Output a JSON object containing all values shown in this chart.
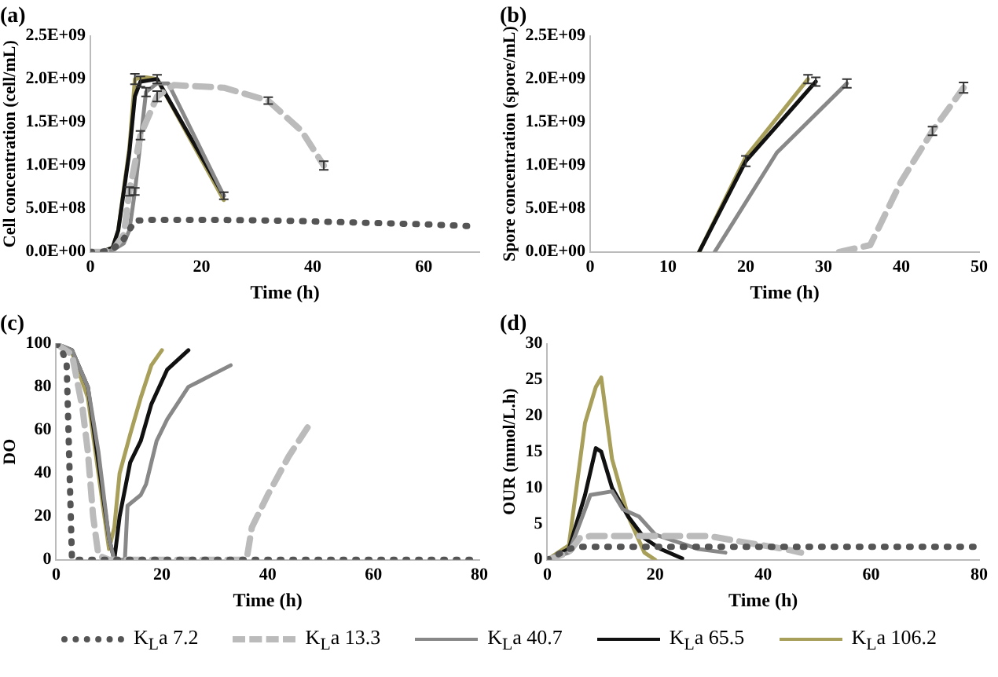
{
  "chart_data": [
    {
      "type": "line",
      "title": "(a)",
      "xlabel": "Time (h)",
      "ylabel": "Cell concentration (cell/mL)",
      "xlim": [
        0,
        70
      ],
      "xticks": [
        0,
        20,
        40,
        60
      ],
      "ylim": [
        0,
        2500000000
      ],
      "yticks": [
        {
          "value": 0,
          "label": "0.0E+00"
        },
        {
          "value": 500000000,
          "label": "5.0E+08"
        },
        {
          "value": 1000000000,
          "label": "1.0E+09"
        },
        {
          "value": 1500000000,
          "label": "1.5E+09"
        },
        {
          "value": 2000000000,
          "label": "2.0E+09"
        },
        {
          "value": 2500000000,
          "label": "2.5E+09"
        }
      ],
      "grid": false,
      "legend": "bottom",
      "series": [
        {
          "name": "K$_{L}$a 7.2",
          "color": "#555555",
          "line_style": "dotted",
          "x": [
            0,
            2,
            4,
            6,
            8,
            10,
            12,
            24,
            36,
            48,
            60,
            68
          ],
          "values": [
            0,
            0,
            30000000,
            150000000,
            360000000,
            370000000,
            370000000,
            370000000,
            360000000,
            340000000,
            320000000,
            300000000
          ]
        },
        {
          "name": "K$_{L}$a 13.3",
          "color": "#bbbbbb",
          "line_style": "dashed",
          "x": [
            0,
            2,
            4,
            6,
            7,
            9,
            12,
            15,
            24,
            32,
            38,
            42
          ],
          "values": [
            0,
            0,
            20000000,
            200000000,
            700000000,
            1350000000,
            1800000000,
            1930000000,
            1900000000,
            1750000000,
            1400000000,
            1000000000
          ],
          "errors": [
            null,
            null,
            null,
            null,
            50000000,
            50000000,
            60000000,
            null,
            null,
            40000000,
            null,
            50000000
          ]
        },
        {
          "name": "K$_{L}$a 40.7",
          "color": "#888888",
          "line_style": "solid",
          "x": [
            0,
            2,
            4,
            6,
            7,
            8,
            10,
            12,
            14,
            24
          ],
          "values": [
            0,
            0,
            20000000,
            100000000,
            250000000,
            700000000,
            1850000000,
            1950000000,
            1950000000,
            650000000
          ],
          "errors": [
            null,
            null,
            null,
            null,
            null,
            40000000,
            50000000,
            null,
            null,
            40000000
          ]
        },
        {
          "name": "K$_{L}$a 65.5",
          "color": "#111111",
          "line_style": "solid",
          "x": [
            0,
            2,
            4,
            5,
            7,
            8,
            9,
            12,
            24
          ],
          "values": [
            0,
            0,
            50000000,
            250000000,
            1150000000,
            1800000000,
            1970000000,
            2000000000,
            650000000
          ],
          "errors": [
            null,
            null,
            null,
            null,
            null,
            null,
            60000000,
            50000000,
            null
          ]
        },
        {
          "name": "K$_{L}$a 106.2",
          "color": "#a89f5a",
          "line_style": "solid",
          "x": [
            0,
            2,
            4,
            5,
            7,
            8,
            10,
            12,
            24
          ],
          "values": [
            0,
            0,
            50000000,
            250000000,
            1200000000,
            2000000000,
            2020000000,
            2000000000,
            600000000
          ],
          "errors": [
            null,
            null,
            null,
            null,
            null,
            60000000,
            null,
            null,
            null
          ]
        }
      ]
    },
    {
      "type": "line",
      "title": "(b)",
      "xlabel": "Time (h)",
      "ylabel": "Spore concentration (spore/mL)",
      "xlim": [
        0,
        50
      ],
      "xticks": [
        0,
        10,
        20,
        30,
        40,
        50
      ],
      "ylim": [
        0,
        2500000000
      ],
      "yticks": [
        {
          "value": 0,
          "label": "0.0E+00"
        },
        {
          "value": 500000000,
          "label": "5.0E+08"
        },
        {
          "value": 1000000000,
          "label": "1.0E+09"
        },
        {
          "value": 1500000000,
          "label": "1.5E+09"
        },
        {
          "value": 2000000000,
          "label": "2.0E+09"
        },
        {
          "value": 2500000000,
          "label": "2.5E+09"
        }
      ],
      "grid": false,
      "series": [
        {
          "color": "#bbbbbb",
          "line_style": "dashed",
          "x": [
            32,
            36,
            40,
            44,
            48
          ],
          "values": [
            0,
            80000000,
            820000000,
            1400000000,
            1900000000
          ],
          "errors": [
            null,
            null,
            null,
            50000000,
            60000000
          ]
        },
        {
          "color": "#888888",
          "line_style": "solid",
          "x": [
            16,
            24,
            33
          ],
          "values": [
            0,
            1150000000,
            1950000000
          ],
          "errors": [
            null,
            null,
            50000000
          ]
        },
        {
          "color": "#111111",
          "line_style": "solid",
          "x": [
            14,
            20,
            29
          ],
          "values": [
            0,
            1050000000,
            1970000000
          ],
          "errors": [
            null,
            60000000,
            50000000
          ]
        },
        {
          "color": "#a89f5a",
          "line_style": "solid",
          "x": [
            14,
            20,
            28
          ],
          "values": [
            0,
            1100000000,
            2000000000
          ],
          "errors": [
            null,
            null,
            50000000
          ]
        }
      ]
    },
    {
      "type": "line",
      "title": "(c)",
      "xlabel": "Time (h)",
      "ylabel": "DO",
      "xlim": [
        0,
        80
      ],
      "xticks": [
        0,
        20,
        40,
        60,
        80
      ],
      "ylim": [
        0,
        100
      ],
      "yticks": [
        0,
        20,
        40,
        60,
        80,
        100
      ],
      "grid": false,
      "series": [
        {
          "color": "#555555",
          "line_style": "dotted",
          "x": [
            0,
            1,
            2,
            3,
            80
          ],
          "values": [
            100,
            98,
            90,
            0,
            0
          ]
        },
        {
          "color": "#bbbbbb",
          "line_style": "dashed",
          "x": [
            0,
            3,
            5,
            6,
            7,
            8,
            10,
            36,
            37,
            40,
            44,
            48
          ],
          "values": [
            100,
            95,
            70,
            50,
            20,
            2,
            0,
            0,
            15,
            30,
            48,
            63
          ]
        },
        {
          "color": "#888888",
          "line_style": "solid",
          "x": [
            0,
            3,
            6,
            8,
            10,
            11,
            13,
            13.5,
            16,
            17,
            19,
            21,
            25,
            29,
            33
          ],
          "values": [
            100,
            97,
            80,
            50,
            10,
            0,
            0,
            25,
            30,
            35,
            55,
            65,
            80,
            85,
            90
          ]
        },
        {
          "color": "#111111",
          "line_style": "solid",
          "x": [
            0,
            3,
            6,
            8,
            10,
            11,
            12,
            14,
            16,
            18,
            21,
            25
          ],
          "values": [
            100,
            97,
            80,
            45,
            10,
            0,
            20,
            45,
            55,
            72,
            88,
            97
          ]
        },
        {
          "color": "#a89f5a",
          "line_style": "solid",
          "x": [
            0,
            3,
            6,
            8,
            10,
            11,
            12,
            14,
            16,
            18,
            20
          ],
          "values": [
            100,
            96,
            75,
            40,
            5,
            15,
            40,
            58,
            75,
            90,
            97
          ]
        }
      ]
    },
    {
      "type": "line",
      "title": "(d)",
      "xlabel": "Time (h)",
      "ylabel": "OUR (mmol/L.h)",
      "xlim": [
        0,
        80
      ],
      "xticks": [
        0,
        20,
        40,
        60,
        80
      ],
      "ylim": [
        0,
        30
      ],
      "yticks": [
        0,
        5,
        10,
        15,
        20,
        25,
        30
      ],
      "grid": false,
      "series": [
        {
          "color": "#555555",
          "line_style": "dotted",
          "x": [
            0,
            4,
            6,
            80
          ],
          "values": [
            0,
            1.5,
            1.8,
            1.8
          ]
        },
        {
          "color": "#bbbbbb",
          "line_style": "dashed",
          "x": [
            0,
            4,
            6,
            8,
            30,
            36,
            44,
            47
          ],
          "values": [
            0,
            1,
            3,
            3.3,
            3.3,
            2.5,
            1.5,
            1
          ]
        },
        {
          "color": "#888888",
          "line_style": "solid",
          "x": [
            0,
            4,
            7,
            8,
            12,
            14,
            17,
            20,
            24,
            28,
            33
          ],
          "values": [
            0,
            1,
            7,
            9,
            9.5,
            7,
            6,
            3.5,
            2.5,
            1.5,
            1
          ]
        },
        {
          "color": "#111111",
          "line_style": "solid",
          "x": [
            0,
            4,
            7,
            9,
            10,
            12,
            15,
            18,
            21,
            25
          ],
          "values": [
            0,
            1.5,
            9,
            15.5,
            15,
            10,
            6,
            3,
            1.5,
            0.2
          ]
        },
        {
          "color": "#a89f5a",
          "line_style": "solid",
          "x": [
            0,
            4,
            7,
            9,
            10,
            12,
            15,
            18,
            20
          ],
          "values": [
            0,
            2,
            19,
            24,
            25.3,
            14,
            6,
            1,
            0
          ]
        }
      ]
    }
  ]
}
